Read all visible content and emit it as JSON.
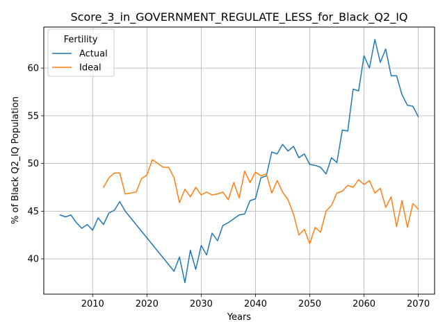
{
  "chart_data": {
    "type": "line",
    "title": "Score_3_in_GOVERNMENT_REGULATE_LESS_for_Black_Q2_IQ",
    "xlabel": "Years",
    "ylabel": "% of Black Q2_IQ Population",
    "xlim": [
      2001,
      2073
    ],
    "ylim": [
      36.3,
      64.3
    ],
    "xticks": [
      2010,
      2020,
      2030,
      2040,
      2050,
      2060,
      2070
    ],
    "yticks": [
      40,
      45,
      50,
      55,
      60
    ],
    "grid": true,
    "legend": {
      "title": "Fertility",
      "position": "top-left"
    },
    "series": [
      {
        "name": "Actual",
        "color": "#1f77b4",
        "x": [
          2004,
          2005,
          2006,
          2007,
          2008,
          2009,
          2010,
          2011,
          2012,
          2013,
          2014,
          2015,
          2016,
          2017,
          2018,
          2019,
          2020,
          2021,
          2022,
          2023,
          2024,
          2025,
          2026,
          2027,
          2028,
          2029,
          2030,
          2031,
          2032,
          2033,
          2034,
          2035,
          2036,
          2037,
          2038,
          2039,
          2040,
          2041,
          2042,
          2043,
          2044,
          2045,
          2046,
          2047,
          2048,
          2049,
          2050,
          2051,
          2052,
          2053,
          2054,
          2055,
          2056,
          2057,
          2058,
          2059,
          2060,
          2061,
          2062,
          2063,
          2064,
          2065,
          2066,
          2067,
          2068,
          2069,
          2070
        ],
        "values": [
          44.6,
          44.4,
          44.6,
          43.8,
          43.2,
          43.6,
          43.0,
          44.3,
          43.6,
          44.8,
          45.1,
          46.0,
          45.0,
          44.3,
          43.6,
          42.9,
          42.2,
          41.5,
          40.8,
          40.1,
          39.4,
          38.7,
          40.2,
          37.5,
          40.9,
          38.9,
          41.4,
          40.4,
          42.7,
          41.9,
          43.5,
          43.8,
          44.2,
          44.6,
          44.7,
          46.1,
          46.3,
          48.5,
          48.7,
          51.2,
          51.0,
          52.0,
          51.3,
          51.8,
          50.6,
          51.0,
          49.9,
          49.8,
          49.6,
          48.9,
          50.6,
          50.1,
          53.5,
          53.4,
          57.8,
          57.6,
          61.3,
          60.0,
          63.0,
          60.6,
          62.0,
          59.2,
          59.2,
          57.2,
          56.1,
          56.0,
          54.9
        ]
      },
      {
        "name": "Ideal",
        "color": "#ff7f0e",
        "x": [
          2012,
          2013,
          2014,
          2015,
          2016,
          2017,
          2018,
          2019,
          2020,
          2021,
          2022,
          2023,
          2024,
          2025,
          2026,
          2027,
          2028,
          2029,
          2030,
          2031,
          2032,
          2033,
          2034,
          2035,
          2036,
          2037,
          2038,
          2039,
          2040,
          2041,
          2042,
          2043,
          2044,
          2045,
          2046,
          2047,
          2048,
          2049,
          2050,
          2051,
          2052,
          2053,
          2054,
          2055,
          2056,
          2057,
          2058,
          2059,
          2060,
          2061,
          2062,
          2063,
          2064,
          2065,
          2066,
          2067,
          2068,
          2069,
          2070
        ],
        "values": [
          47.5,
          48.5,
          49.0,
          49.0,
          46.8,
          46.9,
          47.0,
          48.4,
          48.8,
          50.4,
          50.0,
          49.6,
          49.6,
          48.5,
          45.9,
          47.3,
          46.5,
          47.5,
          46.7,
          47.0,
          46.7,
          46.8,
          47.0,
          46.2,
          48.0,
          46.4,
          49.2,
          48.0,
          49.1,
          48.7,
          48.9,
          46.9,
          48.2,
          47.0,
          46.2,
          44.7,
          42.5,
          43.1,
          41.6,
          43.3,
          42.8,
          45.0,
          45.6,
          46.9,
          47.1,
          47.7,
          47.5,
          48.3,
          47.8,
          48.2,
          46.9,
          47.4,
          45.4,
          46.5,
          43.4,
          46.1,
          43.3,
          45.8,
          45.2
        ]
      }
    ]
  }
}
